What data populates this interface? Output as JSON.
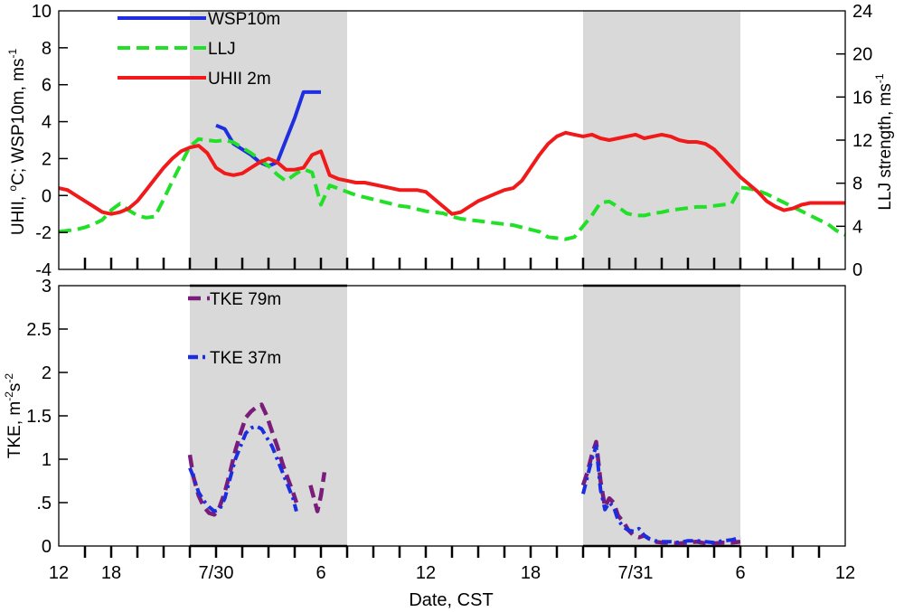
{
  "xaxis": {
    "label": "Date, CST",
    "ticks": [
      {
        "t": 0,
        "label": "12"
      },
      {
        "t": 6,
        "label": "18"
      },
      {
        "t": 18,
        "label": "7/30"
      },
      {
        "t": 30,
        "label": "6"
      },
      {
        "t": 42,
        "label": "12"
      },
      {
        "t": 54,
        "label": "18"
      },
      {
        "t": 66,
        "label": "7/31"
      },
      {
        "t": 78,
        "label": "6"
      },
      {
        "t": 90,
        "label": "12"
      }
    ],
    "range": [
      0,
      90
    ]
  },
  "night_shading": [
    [
      15,
      33
    ],
    [
      60,
      78
    ]
  ],
  "chart_data": [
    {
      "type": "line",
      "title": "",
      "ylabel": "UHII, °C; WSP10m, ms-1",
      "ylabel_parts": {
        "a": "UHII, ",
        "deg": "o",
        "b": "C; WSP10m, ms",
        "exp": "-1"
      },
      "y2label": "LLJ strength, ms-1",
      "y2label_parts": {
        "base": "LLJ strength, ms",
        "exp": "-1"
      },
      "ylim": [
        -4,
        10
      ],
      "y_ticks": [
        "-4",
        "-2",
        "0",
        "2",
        "4",
        "6",
        "8",
        "10"
      ],
      "y2lim": [
        0,
        24
      ],
      "y2_ticks": [
        "0",
        "4",
        "8",
        "12",
        "16",
        "20",
        "24"
      ],
      "series": [
        {
          "name": "WSP10m",
          "axis": "left",
          "color": "#1f2fe0",
          "style": "solid",
          "x": [
            18,
            19,
            20,
            21,
            22,
            23,
            24,
            25,
            26,
            27,
            28,
            29,
            30
          ],
          "y": [
            3.8,
            3.6,
            2.8,
            2.5,
            2.2,
            1.8,
            1.6,
            1.8,
            3.0,
            4.2,
            5.6,
            5.6,
            5.6
          ]
        },
        {
          "name": "LLJ",
          "axis": "right",
          "color": "#22e028",
          "style": "dashed",
          "x": [
            0,
            1,
            2,
            3,
            4,
            5,
            6,
            7,
            8,
            9,
            10,
            11,
            12,
            13,
            14,
            15,
            16,
            17,
            18,
            19,
            20,
            21,
            22,
            23,
            24,
            25,
            26,
            27,
            28,
            29,
            30,
            31,
            32,
            33,
            34,
            35,
            36,
            37,
            38,
            39,
            40,
            41,
            42,
            43,
            44,
            45,
            46,
            47,
            48,
            49,
            50,
            51,
            52,
            53,
            54,
            55,
            56,
            57,
            58,
            59,
            60,
            61,
            62,
            63,
            64,
            65,
            66,
            67,
            68,
            69,
            70,
            71,
            72,
            73,
            74,
            75,
            76,
            77,
            78,
            79,
            80,
            81,
            82,
            83,
            84,
            85,
            86,
            87,
            88,
            89,
            90
          ],
          "y": [
            3.5,
            3.6,
            3.7,
            3.9,
            4.2,
            4.6,
            5.5,
            6.1,
            5.5,
            5.0,
            4.8,
            4.9,
            6.5,
            8.2,
            9.8,
            11.4,
            12.1,
            12.0,
            11.9,
            12.0,
            11.8,
            11.3,
            10.8,
            10.2,
            9.6,
            8.8,
            8.2,
            8.8,
            9.3,
            9.0,
            6.0,
            7.8,
            7.5,
            7.2,
            6.9,
            6.7,
            6.5,
            6.3,
            6.1,
            5.9,
            5.8,
            5.6,
            5.4,
            5.3,
            5.2,
            4.9,
            4.7,
            4.6,
            4.5,
            4.4,
            4.3,
            4.2,
            4.1,
            3.9,
            3.7,
            3.5,
            3.0,
            2.9,
            2.8,
            3.0,
            4.0,
            5.0,
            6.2,
            6.3,
            5.8,
            5.2,
            5.0,
            5.0,
            5.2,
            5.3,
            5.5,
            5.6,
            5.7,
            5.8,
            5.8,
            5.9,
            6.0,
            6.1,
            7.6,
            7.5,
            7.3,
            7.0,
            6.6,
            6.2,
            5.8,
            5.4,
            5.0,
            4.6,
            4.2,
            3.6,
            3.2
          ]
        },
        {
          "name": "UHII 2m",
          "axis": "left",
          "color": "#f01a1a",
          "style": "solid",
          "x": [
            0,
            1,
            2,
            3,
            4,
            5,
            6,
            7,
            8,
            9,
            10,
            11,
            12,
            13,
            14,
            15,
            16,
            17,
            18,
            19,
            20,
            21,
            22,
            23,
            24,
            25,
            26,
            27,
            28,
            29,
            30,
            31,
            32,
            33,
            34,
            35,
            36,
            37,
            38,
            39,
            40,
            41,
            42,
            43,
            44,
            45,
            46,
            47,
            48,
            49,
            50,
            51,
            52,
            53,
            54,
            55,
            56,
            57,
            58,
            59,
            60,
            61,
            62,
            63,
            64,
            65,
            66,
            67,
            68,
            69,
            70,
            71,
            72,
            73,
            74,
            75,
            76,
            77,
            78,
            79,
            80,
            81,
            82,
            83,
            84,
            85,
            86,
            87,
            88,
            89,
            90
          ],
          "y": [
            0.4,
            0.3,
            0.0,
            -0.3,
            -0.6,
            -0.9,
            -1.0,
            -0.9,
            -0.7,
            -0.3,
            0.3,
            0.9,
            1.5,
            2.0,
            2.4,
            2.6,
            2.7,
            2.3,
            1.5,
            1.2,
            1.1,
            1.2,
            1.5,
            1.8,
            2.0,
            1.8,
            1.4,
            1.4,
            1.5,
            2.2,
            2.4,
            1.1,
            0.9,
            0.8,
            0.7,
            0.7,
            0.6,
            0.5,
            0.4,
            0.3,
            0.3,
            0.3,
            0.2,
            -0.2,
            -0.6,
            -1.0,
            -0.9,
            -0.6,
            -0.3,
            -0.1,
            0.1,
            0.3,
            0.4,
            0.8,
            1.5,
            2.2,
            2.8,
            3.2,
            3.4,
            3.3,
            3.2,
            3.3,
            3.1,
            3.0,
            3.1,
            3.2,
            3.3,
            3.1,
            3.2,
            3.3,
            3.2,
            3.0,
            2.9,
            2.9,
            2.8,
            2.5,
            2.0,
            1.5,
            1.0,
            0.6,
            0.2,
            -0.3,
            -0.6,
            -0.8,
            -0.7,
            -0.5,
            -0.4,
            -0.4,
            -0.4,
            -0.4,
            -0.4
          ]
        }
      ],
      "legend": [
        {
          "name": "WSP10m",
          "label": "WSP10m"
        },
        {
          "name": "LLJ",
          "label": "LLJ"
        },
        {
          "name": "UHII 2m",
          "label": "UHII 2m"
        }
      ]
    },
    {
      "type": "line",
      "title": "",
      "ylabel": "TKE, m-2s-2",
      "ylabel_parts": {
        "a": "TKE, m",
        "exp1": "-2",
        "b": "s",
        "exp2": "-2"
      },
      "ylim": [
        0,
        3
      ],
      "y_ticks": [
        {
          "v": 0,
          "label": "0"
        },
        {
          "v": 0.5,
          "label": ".5"
        },
        {
          "v": 1,
          "label": "1"
        },
        {
          "v": 1.5,
          "label": "1.5"
        },
        {
          "v": 2,
          "label": "2"
        },
        {
          "v": 2.5,
          "label": "2.5"
        },
        {
          "v": 3,
          "label": "3"
        }
      ],
      "series": [
        {
          "name": "TKE 79m",
          "color": "#7a1c79",
          "style": "dashed",
          "segments": [
            {
              "x": [
                15.0,
                15.4,
                16.0,
                16.6,
                17.2,
                17.8,
                18.4,
                19.0,
                19.6,
                20.2,
                20.8,
                21.4,
                22.0,
                22.6,
                23.2,
                23.8,
                24.4,
                25.0,
                25.6,
                26.2,
                26.8,
                27.2
              ],
              "y": [
                1.05,
                0.8,
                0.58,
                0.45,
                0.38,
                0.36,
                0.45,
                0.62,
                0.85,
                1.1,
                1.3,
                1.48,
                1.55,
                1.6,
                1.63,
                1.5,
                1.32,
                1.15,
                0.95,
                0.78,
                0.62,
                0.5
              ]
            },
            {
              "x": [
                28.8,
                29.2,
                29.6,
                30.0,
                30.4
              ],
              "y": [
                0.7,
                0.55,
                0.4,
                0.58,
                0.85
              ]
            },
            {
              "x": [
                60.0,
                60.5,
                61.0,
                61.5,
                62.0,
                62.5,
                63.0,
                63.5,
                64.0,
                64.6,
                65.2,
                65.8,
                66.4,
                67.0,
                67.6,
                68.2,
                69.0,
                70.0,
                71.0,
                72.0,
                73.0,
                74.0,
                75.0,
                76.0,
                77.0,
                78.0
              ],
              "y": [
                0.7,
                0.85,
                1.05,
                1.2,
                0.75,
                0.45,
                0.55,
                0.5,
                0.35,
                0.28,
                0.18,
                0.12,
                0.1,
                0.12,
                0.08,
                0.05,
                0.04,
                0.04,
                0.03,
                0.04,
                0.05,
                0.03,
                0.03,
                0.04,
                0.04,
                0.05
              ]
            }
          ]
        },
        {
          "name": "TKE 37m",
          "color": "#1a2de0",
          "style": "dashdot",
          "segments": [
            {
              "x": [
                15.0,
                15.4,
                16.0,
                16.6,
                17.2,
                17.8,
                18.4,
                19.0,
                19.6,
                20.2,
                20.8,
                21.4,
                22.0,
                22.6,
                23.2,
                23.8,
                24.4,
                25.0,
                25.6,
                26.2,
                26.8,
                27.2
              ],
              "y": [
                0.9,
                0.8,
                0.62,
                0.52,
                0.45,
                0.4,
                0.42,
                0.55,
                0.78,
                1.0,
                1.15,
                1.3,
                1.36,
                1.38,
                1.35,
                1.25,
                1.15,
                1.0,
                0.85,
                0.7,
                0.55,
                0.4
              ]
            },
            {
              "x": [
                60.0,
                60.5,
                61.0,
                61.5,
                62.0,
                62.5,
                63.0,
                63.5,
                64.0,
                64.6,
                65.2,
                65.8,
                66.4,
                67.0,
                67.6,
                68.2,
                69.0,
                70.0,
                71.0,
                72.0,
                73.0,
                74.0,
                75.0,
                76.0,
                77.0,
                78.0
              ],
              "y": [
                0.6,
                0.8,
                1.0,
                1.15,
                0.65,
                0.42,
                0.5,
                0.45,
                0.3,
                0.22,
                0.18,
                0.17,
                0.2,
                0.12,
                0.08,
                0.06,
                0.05,
                0.05,
                0.04,
                0.06,
                0.06,
                0.05,
                0.04,
                0.06,
                0.07,
                0.1
              ]
            }
          ]
        }
      ],
      "legend": [
        {
          "name": "TKE 79m",
          "label": "TKE 79m"
        },
        {
          "name": "TKE 37m",
          "label": "TKE 37m"
        }
      ]
    }
  ]
}
